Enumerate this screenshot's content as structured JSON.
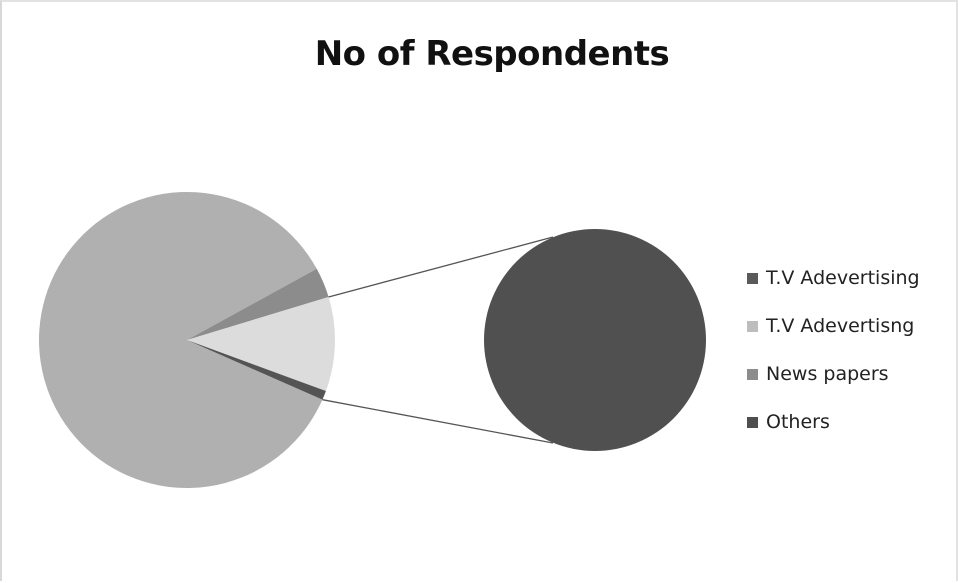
{
  "chart_data": {
    "type": "pie",
    "subtype": "pie-of-pie",
    "title": "No of Respondents",
    "categories": [
      "T.V Adevertising",
      "T.V Adevertisng",
      "News papers",
      "Others"
    ],
    "values": [
      85.4,
      10.3,
      3.3,
      1.0
    ],
    "secondary_pie": {
      "categories": [
        "Others"
      ],
      "values": [
        1.0
      ]
    },
    "colors": [
      "#b0b0b0",
      "#dcdcdc",
      "#8c8c8c",
      "#545454"
    ],
    "legend": {
      "placement": "right",
      "entries": [
        {
          "label": "T.V Adevertising",
          "color": "#5a5a5a"
        },
        {
          "label": "T.V Adevertisng",
          "color": "#bdbdbd"
        },
        {
          "label": "News papers",
          "color": "#8c8c8c"
        },
        {
          "label": "Others",
          "color": "#4f4f4f"
        }
      ]
    },
    "connector_color": "#555555",
    "secondary_color": "#505050"
  }
}
